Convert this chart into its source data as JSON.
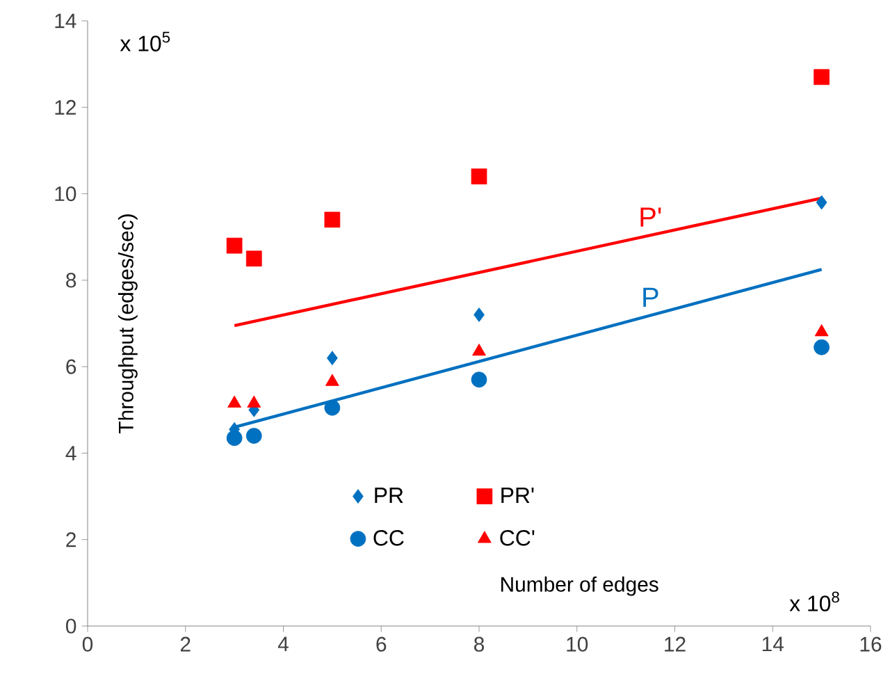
{
  "chart_data": {
    "type": "scatter",
    "xlabel": "Number of edges",
    "ylabel": "Throughput (edges/sec)",
    "annotations": [
      "x 10$^{5}$",
      "x 10$^{8}$"
    ],
    "xlim": [
      0,
      16
    ],
    "ylim": [
      0,
      14
    ],
    "xticks": [
      0,
      2,
      4,
      6,
      8,
      10,
      12,
      14,
      16
    ],
    "yticks": [
      0,
      2,
      4,
      6,
      8,
      10,
      12,
      14
    ],
    "grid": false,
    "legend": "bottom",
    "series": [
      {
        "name": "PR",
        "color": "#0070c0",
        "marker": "diamond",
        "x": [
          3,
          3.4,
          5,
          8,
          15
        ],
        "values": [
          4.55,
          5.0,
          6.2,
          7.2,
          9.8
        ]
      },
      {
        "name": "PR'",
        "color": "#ff0000",
        "marker": "square",
        "x": [
          3,
          3.4,
          5,
          8,
          15
        ],
        "values": [
          8.8,
          8.5,
          9.4,
          10.4,
          12.7
        ]
      },
      {
        "name": "CC",
        "color": "#0070c0",
        "marker": "circle",
        "x": [
          3,
          3.4,
          5,
          8,
          15
        ],
        "values": [
          4.35,
          4.4,
          5.05,
          5.7,
          6.45
        ]
      },
      {
        "name": "CC'",
        "color": "#ff0000",
        "marker": "triangle",
        "x": [
          3,
          3.4,
          5,
          8,
          15
        ],
        "values": [
          5.15,
          5.15,
          5.65,
          6.35,
          6.8
        ]
      },
      {
        "name": "P'",
        "type": "line",
        "color": "#ff0000",
        "marker": "none",
        "x": [
          3,
          15
        ],
        "values": [
          6.95,
          9.9
        ]
      },
      {
        "name": "P",
        "type": "line",
        "color": "#0070c0",
        "marker": "none",
        "x": [
          3,
          15
        ],
        "values": [
          4.6,
          8.25
        ]
      }
    ]
  }
}
